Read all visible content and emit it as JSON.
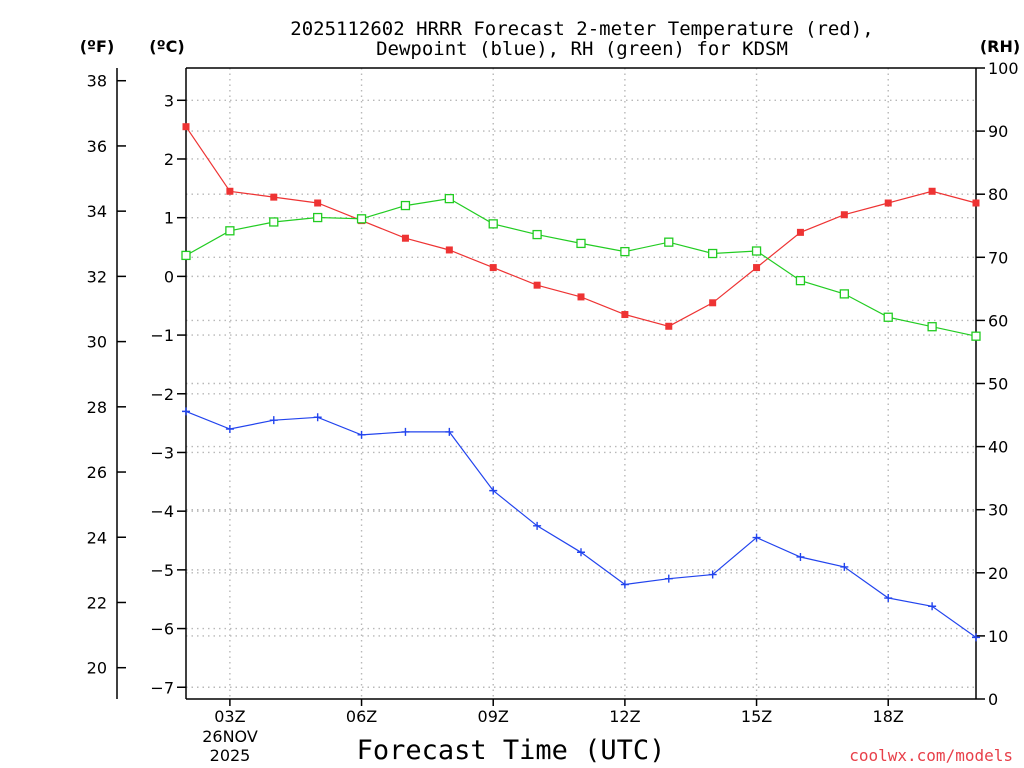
{
  "chart_data": {
    "type": "line",
    "title_line1": "2025112602 HRRR Forecast 2-meter Temperature (red),",
    "title_line2": "Dewpoint (blue), RH (green) for KDSM",
    "left_unit_f": "(ºF)",
    "left_unit_c": "(ºC)",
    "right_unit": "(RH)",
    "xlabel": "Forecast Time (UTC)",
    "credit": "coolwx.com/models",
    "date_labels": [
      "26NOV",
      "2025"
    ],
    "x_range": [
      2,
      20
    ],
    "xticks": [
      {
        "x": 3,
        "label": "03Z"
      },
      {
        "x": 6,
        "label": "06Z"
      },
      {
        "x": 9,
        "label": "09Z"
      },
      {
        "x": 12,
        "label": "12Z"
      },
      {
        "x": 15,
        "label": "15Z"
      },
      {
        "x": 18,
        "label": "18Z"
      }
    ],
    "celsius_axis": {
      "range": [
        -7.2,
        3.55
      ],
      "ticks": [
        3,
        2,
        1,
        0,
        -1,
        -2,
        -3,
        -4,
        -5,
        -6,
        -7
      ],
      "tick_labels": [
        "3",
        "2",
        "1",
        "0",
        "−1",
        "−2",
        "−3",
        "−4",
        "−5",
        "−6",
        "−7"
      ]
    },
    "fahrenheit_axis": {
      "ticks": [
        38,
        36,
        34,
        32,
        30,
        28,
        26,
        24,
        22,
        20
      ],
      "tick_labels": [
        "38",
        "36",
        "34",
        "32",
        "30",
        "28",
        "26",
        "24",
        "22",
        "20"
      ]
    },
    "rh_axis": {
      "range": [
        0,
        100
      ],
      "ticks": [
        100,
        90,
        80,
        70,
        60,
        50,
        40,
        30,
        20,
        10,
        0
      ],
      "tick_labels": [
        "100",
        "90",
        "80",
        "70",
        "60",
        "50",
        "40",
        "30",
        "20",
        "10",
        "0"
      ]
    },
    "x": [
      2,
      3,
      4,
      5,
      6,
      7,
      8,
      9,
      10,
      11,
      12,
      13,
      14,
      15,
      16,
      17,
      18,
      19,
      20
    ],
    "series": [
      {
        "name": "Temperature",
        "axis": "celsius",
        "color": "#ee3333",
        "marker": "filled-square",
        "values": [
          2.55,
          1.45,
          1.35,
          1.25,
          0.95,
          0.65,
          0.45,
          0.15,
          -0.15,
          -0.35,
          -0.65,
          -0.85,
          -0.45,
          0.15,
          0.75,
          1.05,
          1.25,
          1.45,
          1.25
        ]
      },
      {
        "name": "Dewpoint",
        "axis": "celsius",
        "color": "#2244ee",
        "marker": "plus",
        "values": [
          -2.3,
          -2.6,
          -2.45,
          -2.4,
          -2.7,
          -2.65,
          -2.65,
          -3.65,
          -4.25,
          -4.7,
          -5.25,
          -5.15,
          -5.08,
          -4.45,
          -4.78,
          -4.95,
          -5.48,
          -5.62,
          -6.15
        ]
      },
      {
        "name": "RH",
        "axis": "rh",
        "color": "#22cc22",
        "marker": "open-square",
        "values": [
          70.3,
          74.2,
          75.6,
          76.3,
          76.1,
          78.2,
          79.3,
          75.3,
          73.6,
          72.2,
          70.9,
          72.4,
          70.6,
          71.0,
          66.3,
          64.2,
          60.5,
          59.0,
          57.5
        ]
      }
    ]
  }
}
